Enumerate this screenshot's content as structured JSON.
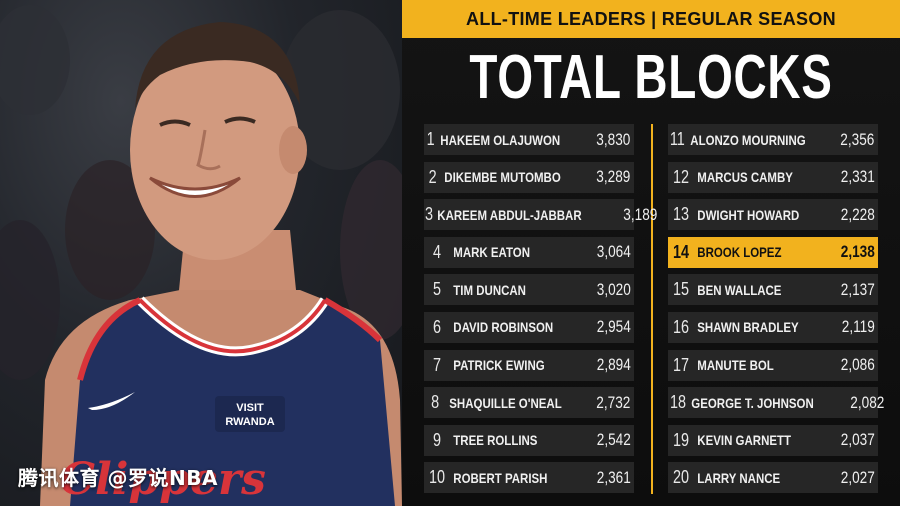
{
  "header": {
    "subtitle": "ALL-TIME LEADERS | REGULAR SEASON",
    "title": "TOTAL BLOCKS"
  },
  "photo": {
    "jersey_patch": "VISIT RWANDA",
    "jersey_script": "Clippers",
    "watermark": "腾讯体育 @罗说NBA"
  },
  "colors": {
    "accent": "#f2b21e",
    "row_bg": "#262626",
    "panel_bg": "#111111"
  },
  "leaders_left": [
    {
      "rank": "1",
      "name": "HAKEEM OLAJUWON",
      "value": "3,830"
    },
    {
      "rank": "2",
      "name": "DIKEMBE MUTOMBO",
      "value": "3,289"
    },
    {
      "rank": "3",
      "name": "KAREEM ABDUL-JABBAR",
      "value": "3,189"
    },
    {
      "rank": "4",
      "name": "MARK EATON",
      "value": "3,064"
    },
    {
      "rank": "5",
      "name": "TIM DUNCAN",
      "value": "3,020"
    },
    {
      "rank": "6",
      "name": "DAVID ROBINSON",
      "value": "2,954"
    },
    {
      "rank": "7",
      "name": "PATRICK EWING",
      "value": "2,894"
    },
    {
      "rank": "8",
      "name": "SHAQUILLE O'NEAL",
      "value": "2,732"
    },
    {
      "rank": "9",
      "name": "TREE ROLLINS",
      "value": "2,542"
    },
    {
      "rank": "10",
      "name": "ROBERT PARISH",
      "value": "2,361"
    }
  ],
  "leaders_right": [
    {
      "rank": "11",
      "name": "ALONZO MOURNING",
      "value": "2,356"
    },
    {
      "rank": "12",
      "name": "MARCUS CAMBY",
      "value": "2,331"
    },
    {
      "rank": "13",
      "name": "DWIGHT HOWARD",
      "value": "2,228"
    },
    {
      "rank": "14",
      "name": "BROOK LOPEZ",
      "value": "2,138",
      "highlight": true
    },
    {
      "rank": "15",
      "name": "BEN WALLACE",
      "value": "2,137"
    },
    {
      "rank": "16",
      "name": "SHAWN BRADLEY",
      "value": "2,119"
    },
    {
      "rank": "17",
      "name": "MANUTE BOL",
      "value": "2,086"
    },
    {
      "rank": "18",
      "name": "GEORGE T. JOHNSON",
      "value": "2,082"
    },
    {
      "rank": "19",
      "name": "KEVIN GARNETT",
      "value": "2,037"
    },
    {
      "rank": "20",
      "name": "LARRY NANCE",
      "value": "2,027"
    }
  ]
}
